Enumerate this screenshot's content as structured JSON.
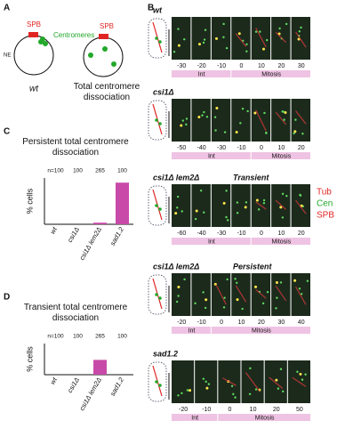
{
  "panel_a": {
    "label": "A",
    "spb_1": "SPB",
    "centromeres": "Centromeres",
    "ne": "NE",
    "caption_1": "wt",
    "spb_2": "SPB",
    "caption_2": "Total centromere dissociation"
  },
  "panel_b": {
    "label": "B",
    "rows": [
      {
        "strain": "wt",
        "times": [
          -30,
          -20,
          -10,
          0,
          10,
          20,
          30
        ],
        "phases": [
          "Int",
          "Mitosis"
        ]
      },
      {
        "strain": "csi1Δ",
        "times": [
          -50,
          -40,
          -30,
          -10,
          0,
          10,
          20
        ],
        "phases": [
          "Int",
          "Mitosis"
        ]
      },
      {
        "strain": "csi1Δ lem2Δ",
        "state": "Transient",
        "times": [
          -60,
          -40,
          -30,
          -10,
          0,
          10,
          20
        ],
        "phases": [
          "Int",
          "Mitosis"
        ]
      },
      {
        "strain": "csi1Δ lem2Δ",
        "state": "Persistent",
        "times": [
          -20,
          -10,
          0,
          10,
          20,
          30,
          40
        ],
        "phases": [
          "Int",
          "Mitosis"
        ]
      },
      {
        "strain": "sad1.2",
        "times": [
          -20,
          -10,
          0,
          10,
          20,
          50
        ],
        "phases": [
          "Int",
          "Mitosis"
        ]
      }
    ],
    "legend": [
      "Tub",
      "Cen",
      "SPB"
    ],
    "legend_colors": [
      "#e02424",
      "#22a82a",
      "#e02424"
    ]
  },
  "chart_data": [
    {
      "type": "bar",
      "panel": "C",
      "title": "Persistent total centromere dissociation",
      "n_labels": [
        "n=100",
        "100",
        "265",
        "100"
      ],
      "ylabel": "% cells",
      "categories": [
        "wt",
        "csi1Δ",
        "csi1Δ lem2Δ",
        "sad1.2"
      ],
      "values": [
        0,
        0,
        0.7,
        18
      ],
      "color": "#c84aa8",
      "ylim": [
        0,
        20
      ]
    },
    {
      "type": "bar",
      "panel": "D",
      "title": "Transient total centromere dissociation",
      "n_labels": [
        "n=100",
        "100",
        "265",
        "100"
      ],
      "ylabel": "% cells",
      "categories": [
        "wt",
        "csi1Δ",
        "csi1Δ lem2Δ",
        "sad1.2"
      ],
      "values": [
        0,
        0,
        9.5,
        0
      ],
      "color": "#c84aa8",
      "ylim": [
        0,
        20
      ]
    }
  ]
}
